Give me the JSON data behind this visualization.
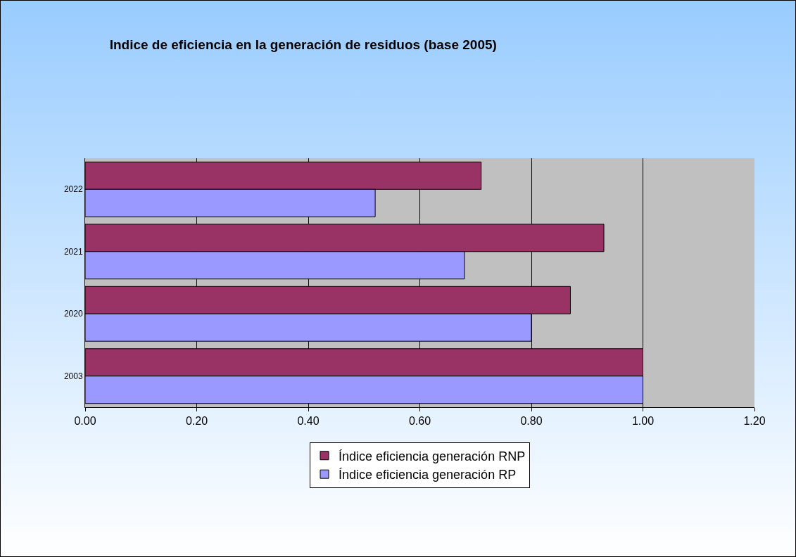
{
  "chart_data": {
    "type": "bar",
    "orientation": "horizontal",
    "title": "Indice de eficiencia en la generación de residuos (base 2005)",
    "categories": [
      "2022",
      "2021",
      "2020",
      "2003"
    ],
    "series": [
      {
        "name": "Índice eficiencia generación RNP",
        "color": "#993366",
        "values": [
          0.71,
          0.93,
          0.87,
          1.0
        ]
      },
      {
        "name": "Índice eficiencia generación RP",
        "color": "#9999ff",
        "values": [
          0.52,
          0.68,
          0.8,
          1.0
        ]
      }
    ],
    "xlim": [
      0,
      1.2
    ],
    "xticks": [
      {
        "value": 0,
        "label": "0.00"
      },
      {
        "value": 0.2,
        "label": "0.20"
      },
      {
        "value": 0.4,
        "label": "0.40"
      },
      {
        "value": 0.6,
        "label": "0.60"
      },
      {
        "value": 0.8,
        "label": "0.80"
      },
      {
        "value": 1,
        "label": "1.00"
      },
      {
        "value": 1.2,
        "label": "1.20"
      }
    ],
    "grid": "x",
    "legend": "bottom"
  }
}
